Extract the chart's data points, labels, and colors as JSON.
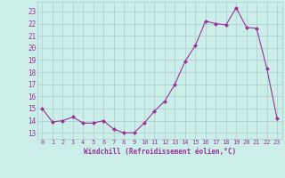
{
  "x": [
    0,
    1,
    2,
    3,
    4,
    5,
    6,
    7,
    8,
    9,
    10,
    11,
    12,
    13,
    14,
    15,
    16,
    17,
    18,
    19,
    20,
    21,
    22,
    23
  ],
  "y": [
    15,
    13.9,
    14,
    14.3,
    13.8,
    13.8,
    14,
    13.3,
    13,
    13,
    13.8,
    14.8,
    15.6,
    17,
    18.9,
    20.2,
    22.2,
    22,
    21.9,
    23.3,
    21.7,
    21.6,
    18.3,
    14.2
  ],
  "x_ticks": [
    0,
    1,
    2,
    3,
    4,
    5,
    6,
    7,
    8,
    9,
    10,
    11,
    12,
    13,
    14,
    15,
    16,
    17,
    18,
    19,
    20,
    21,
    22,
    23
  ],
  "x_tick_labels": [
    "0",
    "1",
    "2",
    "3",
    "4",
    "5",
    "6",
    "7",
    "8",
    "9",
    "10",
    "11",
    "12",
    "13",
    "14",
    "15",
    "16",
    "17",
    "18",
    "19",
    "20",
    "21",
    "22",
    "23"
  ],
  "y_ticks": [
    13,
    14,
    15,
    16,
    17,
    18,
    19,
    20,
    21,
    22,
    23
  ],
  "y_tick_labels": [
    "13",
    "14",
    "15",
    "16",
    "17",
    "18",
    "19",
    "20",
    "21",
    "22",
    "23"
  ],
  "ylim": [
    12.5,
    23.8
  ],
  "xlim": [
    -0.5,
    23.5
  ],
  "xlabel": "Windchill (Refroidissement éolien,°C)",
  "line_color": "#993399",
  "marker": "D",
  "marker_size": 2,
  "bg_color": "#cceee8",
  "grid_color": "#aacccc",
  "label_color": "#993399"
}
